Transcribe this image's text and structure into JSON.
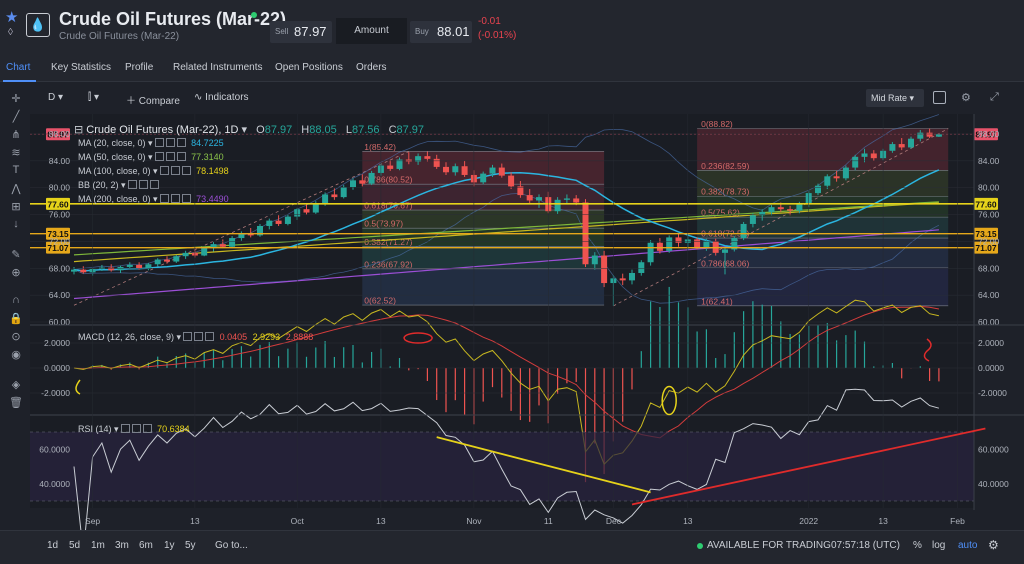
{
  "header": {
    "title": "Crude Oil Futures (Mar-22)",
    "subtitle": "Crude Oil Futures (Mar-22)",
    "sell_label": "Sell",
    "sell_price": "87.97",
    "amount_label": "Amount",
    "buy_label": "Buy",
    "buy_price": "88.01",
    "change_abs": "-0.01",
    "change_pct": "(-0.01%)"
  },
  "tabs": [
    "Chart",
    "Key Statistics",
    "Profile",
    "Related Instruments",
    "Open Positions",
    "Orders"
  ],
  "toolbar": {
    "interval": "D",
    "compare_label": "Compare",
    "indicators_label": "Indicators",
    "price_mode": "Mid Rate"
  },
  "legend": {
    "main_title": "Crude Oil Futures (Mar-22), 1D",
    "o_label": "O",
    "o_value": "87.97",
    "h_label": "H",
    "h_value": "88.05",
    "l_label": "L",
    "l_value": "87.56",
    "c_label": "C",
    "c_value": "87.97",
    "ma20": "MA (20, close, 0)",
    "ma20_value": "84.7225",
    "ma50": "MA (50, close, 0)",
    "ma50_value": "77.3140",
    "ma100": "MA (100, close, 0)",
    "ma100_value": "78.1498",
    "bb": "BB (20, 2)",
    "ma200": "MA (200, close, 0)",
    "ma200_value": "73.4490",
    "macd": "MACD (12, 26, close, 9)",
    "macd_v1": "0.0405",
    "macd_v2": "2.9293",
    "macd_v3": "2.8888",
    "rsi": "RSI (14)",
    "rsi_value": "70.6384"
  },
  "price_axis": [
    "88.00",
    "84.00",
    "80.00",
    "76.00",
    "72.00",
    "68.00",
    "64.00",
    "60.00"
  ],
  "price_badges": [
    {
      "label": "87.97",
      "color": "#e8536a"
    },
    {
      "label": "77.60",
      "color": "#e6d21a"
    },
    {
      "label": "73.15",
      "color": "#e6a81a"
    },
    {
      "label": "71.07",
      "color": "#e6a81a"
    }
  ],
  "macd_axis": [
    "2.0000",
    "0.0000",
    "-2.0000"
  ],
  "rsi_axis": [
    "60.0000",
    "40.0000"
  ],
  "x_axis": [
    "Sep",
    "13",
    "Oct",
    "13",
    "Nov",
    "11",
    "Dec",
    "13",
    "2022",
    "13",
    "Feb"
  ],
  "fib_left": [
    "1(85.42)",
    "0.786(80.52)",
    "0.618(76.67)",
    "0.5(73.97)",
    "0.382(71.27)",
    "0.236(67.92)",
    "0(62.52)"
  ],
  "fib_right": [
    "0(88.82)",
    "0.236(82.59)",
    "0.382(78.73)",
    "0.5(75.62)",
    "0.618(72.50)",
    "0.786(68.06)",
    "1(62.41)"
  ],
  "timeframes": [
    "1d",
    "5d",
    "1m",
    "3m",
    "6m",
    "1y",
    "5y",
    "Go to..."
  ],
  "status": {
    "availability": "AVAILABLE FOR TRADING",
    "clock": "07:57:18 (UTC)",
    "pct": "%",
    "log": "log",
    "auto": "auto"
  },
  "colors": {
    "accent": "#4f8ff7",
    "up": "#26a69a",
    "down": "#ef5350",
    "ma20": "#2bb5e0",
    "rsi": "#e6d21a"
  },
  "chart_data": {
    "type": "candlestick",
    "ylim": [
      60,
      89
    ],
    "candles": [
      [
        67.5,
        68.2,
        67.1,
        67.8
      ],
      [
        67.8,
        68.3,
        67.2,
        67.4
      ],
      [
        67.4,
        68.0,
        66.9,
        67.9
      ],
      [
        67.9,
        68.5,
        67.6,
        68.1
      ],
      [
        68.1,
        68.6,
        67.5,
        67.7
      ],
      [
        67.7,
        68.4,
        67.3,
        68.2
      ],
      [
        68.2,
        68.9,
        67.9,
        68.5
      ],
      [
        68.5,
        68.9,
        67.8,
        68.0
      ],
      [
        68.0,
        68.8,
        67.7,
        68.6
      ],
      [
        68.6,
        69.5,
        68.3,
        69.3
      ],
      [
        69.3,
        69.8,
        68.7,
        69.0
      ],
      [
        69.0,
        70.0,
        68.8,
        69.8
      ],
      [
        69.8,
        70.6,
        69.4,
        70.3
      ],
      [
        70.3,
        70.8,
        69.6,
        69.9
      ],
      [
        69.9,
        71.2,
        69.8,
        71.0
      ],
      [
        71.0,
        71.9,
        70.5,
        71.6
      ],
      [
        71.6,
        72.3,
        71.0,
        71.2
      ],
      [
        71.2,
        72.8,
        71.0,
        72.5
      ],
      [
        72.5,
        73.5,
        72.1,
        73.2
      ],
      [
        73.2,
        74.0,
        72.6,
        72.9
      ],
      [
        72.9,
        74.6,
        72.7,
        74.3
      ],
      [
        74.3,
        75.4,
        73.8,
        75.1
      ],
      [
        75.1,
        75.9,
        74.3,
        74.6
      ],
      [
        74.6,
        76.0,
        74.4,
        75.7
      ],
      [
        75.7,
        77.0,
        75.2,
        76.8
      ],
      [
        76.8,
        77.6,
        76.0,
        76.3
      ],
      [
        76.3,
        78.0,
        76.1,
        77.7
      ],
      [
        77.7,
        79.3,
        77.3,
        79.0
      ],
      [
        79.0,
        79.9,
        78.2,
        78.6
      ],
      [
        78.6,
        80.4,
        78.4,
        80.1
      ],
      [
        80.1,
        81.4,
        79.7,
        81.1
      ],
      [
        81.1,
        82.0,
        80.2,
        80.6
      ],
      [
        80.6,
        82.5,
        80.4,
        82.2
      ],
      [
        82.2,
        83.6,
        81.8,
        83.3
      ],
      [
        83.3,
        84.1,
        82.5,
        82.8
      ],
      [
        82.8,
        84.5,
        82.6,
        84.2
      ],
      [
        84.2,
        85.3,
        83.5,
        83.9
      ],
      [
        83.9,
        85.1,
        83.4,
        84.7
      ],
      [
        84.7,
        85.4,
        83.9,
        84.3
      ],
      [
        84.3,
        84.9,
        82.8,
        83.1
      ],
      [
        83.1,
        83.8,
        81.9,
        82.3
      ],
      [
        82.3,
        83.6,
        81.8,
        83.2
      ],
      [
        83.2,
        84.0,
        81.6,
        81.9
      ],
      [
        81.9,
        82.6,
        80.2,
        80.8
      ],
      [
        80.8,
        82.4,
        80.5,
        82.1
      ],
      [
        82.1,
        83.4,
        81.6,
        83.0
      ],
      [
        83.0,
        83.6,
        81.5,
        81.8
      ],
      [
        81.8,
        82.3,
        79.8,
        80.2
      ],
      [
        80.2,
        81.0,
        78.5,
        78.9
      ],
      [
        78.9,
        79.8,
        77.6,
        78.1
      ],
      [
        78.1,
        79.0,
        77.0,
        78.6
      ],
      [
        78.6,
        79.4,
        76.2,
        76.5
      ],
      [
        76.5,
        78.6,
        76.1,
        78.2
      ],
      [
        78.2,
        79.0,
        77.6,
        78.4
      ],
      [
        78.4,
        78.9,
        77.4,
        77.8
      ],
      [
        77.8,
        78.3,
        68.2,
        68.6
      ],
      [
        68.6,
        70.4,
        67.8,
        69.9
      ],
      [
        69.9,
        70.6,
        65.2,
        65.8
      ],
      [
        65.8,
        67.0,
        62.4,
        66.5
      ],
      [
        66.5,
        67.2,
        65.5,
        66.2
      ],
      [
        66.2,
        67.8,
        65.6,
        67.3
      ],
      [
        67.3,
        69.2,
        66.9,
        68.9
      ],
      [
        68.9,
        72.2,
        68.4,
        71.8
      ],
      [
        71.8,
        72.5,
        70.2,
        70.6
      ],
      [
        70.6,
        72.9,
        70.3,
        72.6
      ],
      [
        72.6,
        73.2,
        71.2,
        71.8
      ],
      [
        71.8,
        72.8,
        70.7,
        72.3
      ],
      [
        72.3,
        72.6,
        70.8,
        71.1
      ],
      [
        71.1,
        72.4,
        70.6,
        72.0
      ],
      [
        72.0,
        72.4,
        69.9,
        70.3
      ],
      [
        70.3,
        71.2,
        67.1,
        70.8
      ],
      [
        70.8,
        72.8,
        70.5,
        72.5
      ],
      [
        72.5,
        74.9,
        72.2,
        74.6
      ],
      [
        74.6,
        76.2,
        74.1,
        75.9
      ],
      [
        75.9,
        76.8,
        75.1,
        76.4
      ],
      [
        76.4,
        77.4,
        75.9,
        77.1
      ],
      [
        77.1,
        77.8,
        76.4,
        76.8
      ],
      [
        76.8,
        77.3,
        75.9,
        76.6
      ],
      [
        76.6,
        77.9,
        76.2,
        77.5
      ],
      [
        77.5,
        79.5,
        77.1,
        79.2
      ],
      [
        79.2,
        80.6,
        78.9,
        80.3
      ],
      [
        80.3,
        82.0,
        79.8,
        81.7
      ],
      [
        81.7,
        82.5,
        80.9,
        81.4
      ],
      [
        81.4,
        83.3,
        81.1,
        83.0
      ],
      [
        83.0,
        84.9,
        82.6,
        84.6
      ],
      [
        84.6,
        85.8,
        83.8,
        85.1
      ],
      [
        85.1,
        85.6,
        84.0,
        84.4
      ],
      [
        84.4,
        85.8,
        84.1,
        85.5
      ],
      [
        85.5,
        86.8,
        85.2,
        86.5
      ],
      [
        86.5,
        87.4,
        85.6,
        86.0
      ],
      [
        86.0,
        87.6,
        85.8,
        87.3
      ],
      [
        87.3,
        88.6,
        86.9,
        88.2
      ],
      [
        88.2,
        88.8,
        87.4,
        87.6
      ],
      [
        87.6,
        88.05,
        87.56,
        87.97
      ]
    ]
  }
}
